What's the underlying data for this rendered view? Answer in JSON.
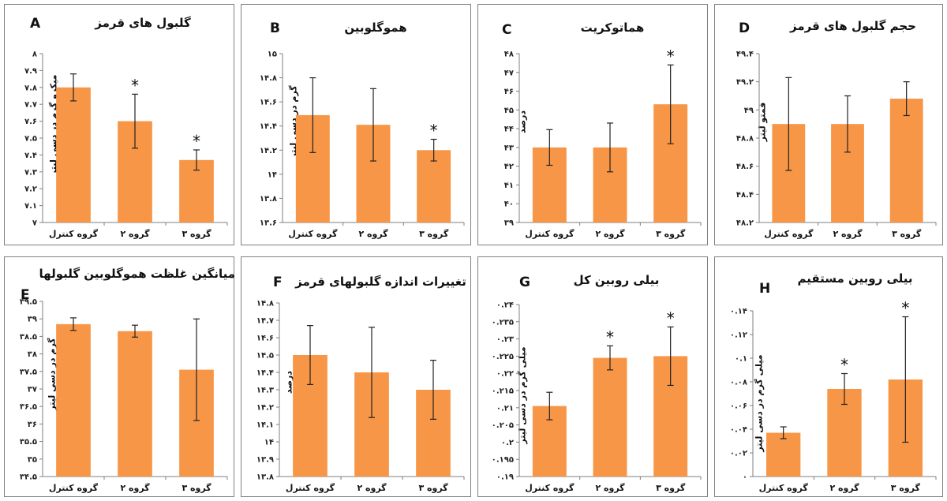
{
  "colors": {
    "bar": "#F79646",
    "border": "#7f7f7f",
    "axis": "#7f7f7f",
    "error_bar": "#222222"
  },
  "chart_data": [
    {
      "id": "A",
      "letter": "A",
      "type": "bar",
      "title": "گلبول های قرمز",
      "ylabel": "میکرو گرم در دسی لیتر",
      "categories": [
        "گروه کنترل",
        "گروه ۲",
        "گروه ۳"
      ],
      "values": [
        7.8,
        7.6,
        7.37
      ],
      "errors": [
        0.08,
        0.16,
        0.06
      ],
      "significant": [
        "",
        "*",
        "*"
      ],
      "ylim": [
        7,
        8
      ],
      "yticks": [
        "۷",
        "۷.۱",
        "۷.۲",
        "۷.۳",
        "۷.۴",
        "۷.۵",
        "۷.۶",
        "۷.۷",
        "۷.۸",
        "۷.۹",
        "۸"
      ]
    },
    {
      "id": "B",
      "letter": "B",
      "type": "bar",
      "title": "هموگلوبین",
      "ylabel": "گرم در دسی لیتر",
      "categories": [
        "گروه کنترل",
        "گروه ۲",
        "گروه ۳"
      ],
      "values": [
        14.49,
        14.41,
        14.2
      ],
      "errors": [
        0.31,
        0.3,
        0.09
      ],
      "significant": [
        "",
        "",
        "*"
      ],
      "ylim": [
        13.6,
        15
      ],
      "yticks": [
        "۱۳.۶",
        "۱۳.۸",
        "۱۴",
        "۱۴.۲",
        "۱۴.۴",
        "۱۴.۶",
        "۱۴.۸",
        "۱۵"
      ]
    },
    {
      "id": "C",
      "letter": "C",
      "type": "bar",
      "title": "هماتوکریت",
      "ylabel": "درصد",
      "categories": [
        "گروه کنترل",
        "گروه ۲",
        "گروه ۳"
      ],
      "values": [
        43.0,
        43.0,
        45.3
      ],
      "errors": [
        0.95,
        1.3,
        2.1
      ],
      "significant": [
        "",
        "",
        "*"
      ],
      "ylim": [
        39,
        48
      ],
      "yticks": [
        "۳۹",
        "۴۰",
        "۴۱",
        "۴۲",
        "۴۳",
        "۴۴",
        "۴۵",
        "۴۶",
        "۴۷",
        "۴۸"
      ]
    },
    {
      "id": "D",
      "letter": "D",
      "type": "bar",
      "title": "حجم گلبول های قرمز",
      "ylabel": "فمتو لیتر",
      "categories": [
        "گروه کنترل",
        "گروه ۲",
        "گروه ۳"
      ],
      "values": [
        48.9,
        48.9,
        49.08
      ],
      "errors": [
        0.33,
        0.2,
        0.12
      ],
      "significant": [
        "",
        "",
        ""
      ],
      "ylim": [
        48.2,
        49.4
      ],
      "yticks": [
        "۴۸.۲",
        "۴۸.۴",
        "۴۸.۶",
        "۴۸.۸",
        "۴۹",
        "۴۹.۲",
        "۴۹.۴"
      ]
    },
    {
      "id": "E",
      "letter": "E",
      "type": "bar",
      "title": "میانگین غلظت هموگلوبین گلبولها",
      "ylabel": "گرم در دسی لیتر",
      "categories": [
        "گروه کنترل",
        "گروه ۲",
        "گروه ۳"
      ],
      "values": [
        38.85,
        38.65,
        37.55
      ],
      "errors": [
        0.18,
        0.17,
        1.45
      ],
      "significant": [
        "",
        "",
        ""
      ],
      "ylim": [
        34.5,
        39.5
      ],
      "yticks": [
        "۳۴.۵",
        "۳۵",
        "۳۵.۵",
        "۳۶",
        "۳۶.۵",
        "۳۷",
        "۳۷.۵",
        "۳۸",
        "۳۸.۵",
        "۳۹",
        "۳۹.۵"
      ]
    },
    {
      "id": "F",
      "letter": "F",
      "type": "bar",
      "title": "تغییرات اندازه گلبولهای قرمز",
      "ylabel": "درصد",
      "categories": [
        "گروه کنترل",
        "گروه ۲",
        "گروه ۳"
      ],
      "values": [
        14.5,
        14.4,
        14.3
      ],
      "errors": [
        0.17,
        0.26,
        0.17
      ],
      "significant": [
        "",
        "",
        ""
      ],
      "ylim": [
        13.8,
        14.8
      ],
      "yticks": [
        "۱۳.۸",
        "۱۳.۹",
        "۱۴",
        "۱۴.۱",
        "۱۴.۲",
        "۱۴.۳",
        "۱۴.۴",
        "۱۴.۵",
        "۱۴.۶",
        "۱۴.۷",
        "۱۴.۸"
      ]
    },
    {
      "id": "G",
      "letter": "G",
      "type": "bar",
      "title": "بیلی روبین کل",
      "ylabel": "میلی گرم در دسی لیتر",
      "categories": [
        "گروه کنترل",
        "گروه ۲",
        "گروه ۳"
      ],
      "values": [
        0.2105,
        0.2245,
        0.225
      ],
      "errors": [
        0.004,
        0.0035,
        0.0085
      ],
      "significant": [
        "",
        "*",
        "*"
      ],
      "ylim": [
        0.19,
        0.24
      ],
      "yticks": [
        "۰.۱۹",
        "۰.۱۹۵",
        "۰.۲",
        "۰.۲۰۵",
        "۰.۲۱",
        "۰.۲۱۵",
        "۰.۲۲",
        "۰.۲۲۵",
        "۰.۲۳",
        "۰.۲۳۵",
        "۰.۲۴"
      ]
    },
    {
      "id": "H",
      "letter": "H",
      "type": "bar",
      "title": "بیلی روبین مستقیم",
      "ylabel": "میلی گرم در دسی لیتر",
      "categories": [
        "گروه کنترل",
        "گروه ۲",
        "گروه ۳"
      ],
      "values": [
        0.037,
        0.074,
        0.082
      ],
      "errors": [
        0.005,
        0.013,
        0.053
      ],
      "significant": [
        "",
        "*",
        "*"
      ],
      "ylim": [
        0,
        0.14
      ],
      "yticks": [
        "۰",
        "۰.۰۲",
        "۰.۰۴",
        "۰.۰۶",
        "۰.۰۸",
        "۰.۱",
        "۰.۱۲",
        "۰.۱۴"
      ]
    }
  ]
}
